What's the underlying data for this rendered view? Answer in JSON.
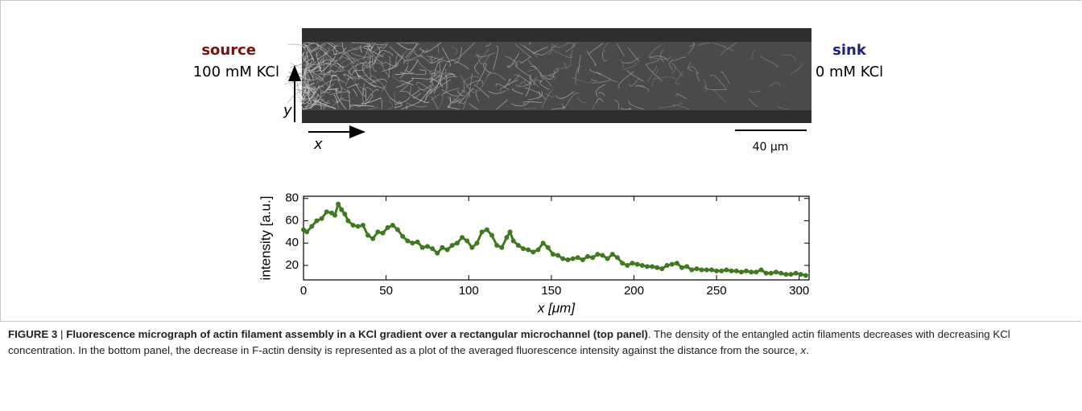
{
  "figure": {
    "source_label": "source",
    "source_conc": "100 mM KCl",
    "sink_label": "sink",
    "sink_conc": "0 mM KCl",
    "y_arrow": "y",
    "x_arrow": "x",
    "scale_bar": "40 μm"
  },
  "chart_data": {
    "type": "scatter",
    "y_label": "intensity [a.u.]",
    "x_label": "x [μm]",
    "xlim": [
      0,
      306
    ],
    "ylim": [
      7,
      82
    ],
    "xticks": [
      0,
      50,
      100,
      150,
      200,
      250,
      300
    ],
    "yticks": [
      20,
      40,
      60,
      80
    ],
    "color": "#3f7a1e",
    "x": [
      0,
      2,
      5,
      8,
      11,
      14,
      17,
      19,
      21,
      23,
      25,
      27,
      30,
      33,
      36,
      39,
      42,
      45,
      48,
      51,
      54,
      57,
      60,
      63,
      66,
      69,
      72,
      75,
      78,
      81,
      84,
      87,
      90,
      93,
      96,
      99,
      102,
      105,
      108,
      111,
      114,
      117,
      120,
      123,
      125,
      127,
      130,
      133,
      136,
      139,
      142,
      145,
      148,
      151,
      154,
      157,
      160,
      163,
      166,
      169,
      172,
      175,
      178,
      181,
      184,
      187,
      190,
      193,
      196,
      199,
      202,
      205,
      208,
      211,
      214,
      217,
      220,
      223,
      226,
      229,
      232,
      235,
      238,
      241,
      244,
      247,
      250,
      253,
      256,
      259,
      262,
      265,
      268,
      271,
      274,
      277,
      280,
      283,
      286,
      289,
      292,
      295,
      298,
      301,
      304
    ],
    "values": [
      52,
      50,
      55,
      60,
      62,
      68,
      67,
      65,
      75,
      70,
      66,
      60,
      56,
      55,
      56,
      47,
      44,
      50,
      49,
      54,
      56,
      52,
      46,
      42,
      40,
      41,
      36,
      37,
      35,
      31,
      36,
      34,
      38,
      40,
      45,
      42,
      36,
      40,
      50,
      52,
      47,
      38,
      36,
      45,
      50,
      42,
      38,
      35,
      34,
      32,
      34,
      40,
      36,
      30,
      29,
      26,
      25,
      26,
      27,
      25,
      28,
      27,
      30,
      29,
      26,
      30,
      27,
      22,
      20,
      22,
      21,
      20,
      19,
      19,
      18,
      17,
      20,
      21,
      22,
      18,
      19,
      16,
      17,
      16,
      16,
      16,
      15,
      15,
      16,
      15,
      15,
      14,
      15,
      14,
      14,
      16,
      13,
      13,
      14,
      13,
      12,
      12,
      13,
      12,
      11
    ]
  },
  "caption": {
    "label": "FIGURE 3",
    "separator": "|",
    "title": "Fluorescence micrograph of actin filament assembly in a KCl gradient over a rectangular microchannel (top panel)",
    "text": ". The density of the entangled actin filaments decreases with decreasing KCl concentration. In the bottom panel, the decrease in F-actin density is represented as a plot of the averaged fluorescence intensity against the distance from the source, ",
    "variable": "x",
    "end": "."
  }
}
